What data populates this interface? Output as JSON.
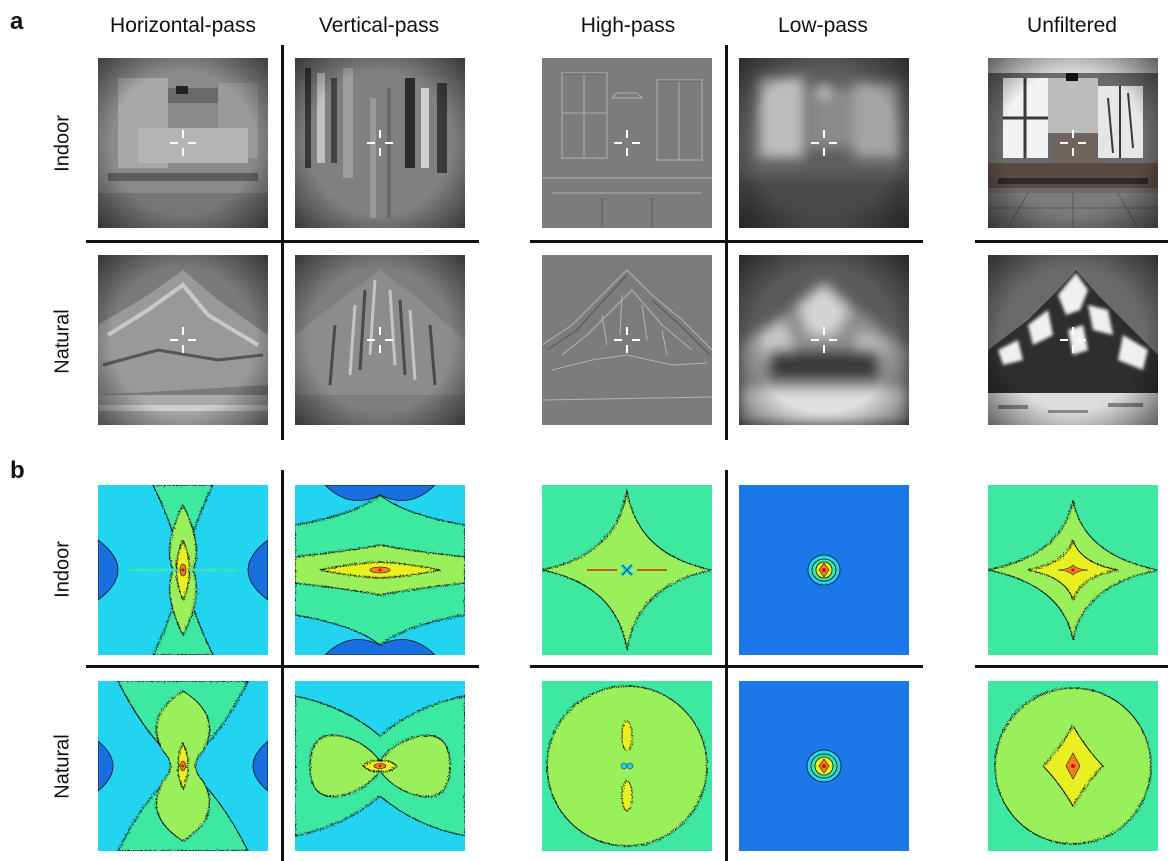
{
  "panels": {
    "a": "a",
    "b": "b"
  },
  "columns": [
    "Horizontal-pass",
    "Vertical-pass",
    "High-pass",
    "Low-pass",
    "Unfiltered"
  ],
  "rows": [
    "Indoor",
    "Natural"
  ],
  "colors": {
    "spectrum_outer_cyan": "#22d4f0",
    "spectrum_dark_blue": "#1a6fe0",
    "spectrum_green": "#3ee8a0",
    "spectrum_lime": "#9af05a",
    "spectrum_yellow": "#e8f020",
    "spectrum_orange": "#f08020",
    "spectrum_red": "#d01010",
    "lowpass_bg": "#1a78e8"
  }
}
